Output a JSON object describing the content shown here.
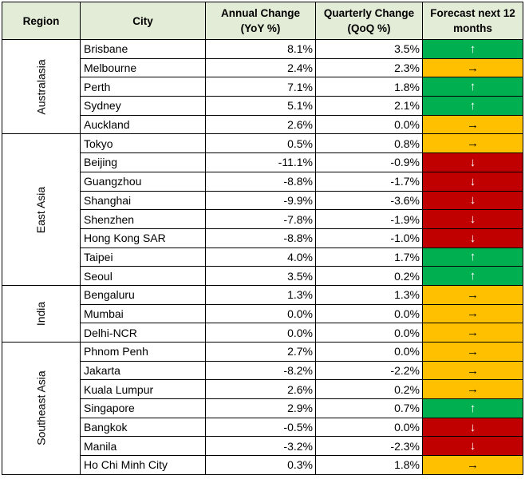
{
  "header": {
    "region": "Region",
    "city": "City",
    "annual_line1": "Annual Change",
    "annual_line2": "(YoY %)",
    "quarterly_line1": "Quarterly Change",
    "quarterly_line2": "(QoQ %)",
    "forecast_line1": "Forecast next 12",
    "forecast_line2": "months"
  },
  "forecast_colors": {
    "up": "#00b050",
    "flat": "#ffc000",
    "down": "#c00000"
  },
  "groups": [
    {
      "region": "Australasia",
      "rows": [
        {
          "city": "Brisbane",
          "annual": "8.1%",
          "quarterly": "3.5%",
          "forecast": "up",
          "arrow": "↑"
        },
        {
          "city": "Melbourne",
          "annual": "2.4%",
          "quarterly": "2.3%",
          "forecast": "flat",
          "arrow": "→"
        },
        {
          "city": "Perth",
          "annual": "7.1%",
          "quarterly": "1.8%",
          "forecast": "up",
          "arrow": "↑"
        },
        {
          "city": "Sydney",
          "annual": "5.1%",
          "quarterly": "2.1%",
          "forecast": "up",
          "arrow": "↑"
        },
        {
          "city": "Auckland",
          "annual": "2.6%",
          "quarterly": "0.0%",
          "forecast": "flat",
          "arrow": "→"
        }
      ]
    },
    {
      "region": "East Asia",
      "rows": [
        {
          "city": "Tokyo",
          "annual": "0.5%",
          "quarterly": "0.8%",
          "forecast": "flat",
          "arrow": "→"
        },
        {
          "city": "Beijing",
          "annual": "-11.1%",
          "quarterly": "-0.9%",
          "forecast": "down",
          "arrow": "↓"
        },
        {
          "city": "Guangzhou",
          "annual": "-8.8%",
          "quarterly": "-1.7%",
          "forecast": "down",
          "arrow": "↓"
        },
        {
          "city": "Shanghai",
          "annual": "-9.9%",
          "quarterly": "-3.6%",
          "forecast": "down",
          "arrow": "↓"
        },
        {
          "city": "Shenzhen",
          "annual": "-7.8%",
          "quarterly": "-1.9%",
          "forecast": "down",
          "arrow": "↓"
        },
        {
          "city": "Hong Kong SAR",
          "annual": "-8.8%",
          "quarterly": "-1.0%",
          "forecast": "down",
          "arrow": "↓"
        },
        {
          "city": "Taipei",
          "annual": "4.0%",
          "quarterly": "1.7%",
          "forecast": "up",
          "arrow": "↑"
        },
        {
          "city": "Seoul",
          "annual": "3.5%",
          "quarterly": "0.2%",
          "forecast": "up",
          "arrow": "↑"
        }
      ]
    },
    {
      "region": "India",
      "rows": [
        {
          "city": "Bengaluru",
          "annual": "1.3%",
          "quarterly": "1.3%",
          "forecast": "flat",
          "arrow": "→"
        },
        {
          "city": "Mumbai",
          "annual": "0.0%",
          "quarterly": "0.0%",
          "forecast": "flat",
          "arrow": "→"
        },
        {
          "city": "Delhi-NCR",
          "annual": "0.0%",
          "quarterly": "0.0%",
          "forecast": "flat",
          "arrow": "→"
        }
      ]
    },
    {
      "region": "Southeast Asia",
      "rows": [
        {
          "city": "Phnom Penh",
          "annual": "2.7%",
          "quarterly": "0.0%",
          "forecast": "flat",
          "arrow": "→"
        },
        {
          "city": "Jakarta",
          "annual": "-8.2%",
          "quarterly": "-2.2%",
          "forecast": "flat",
          "arrow": "→"
        },
        {
          "city": "Kuala Lumpur",
          "annual": "2.6%",
          "quarterly": "0.2%",
          "forecast": "flat",
          "arrow": "→"
        },
        {
          "city": "Singapore",
          "annual": "2.9%",
          "quarterly": "0.7%",
          "forecast": "up",
          "arrow": "↑"
        },
        {
          "city": "Bangkok",
          "annual": "-0.5%",
          "quarterly": "0.0%",
          "forecast": "down",
          "arrow": "↓"
        },
        {
          "city": "Manila",
          "annual": "-3.2%",
          "quarterly": "-2.3%",
          "forecast": "down",
          "arrow": "↓"
        },
        {
          "city": "Ho Chi Minh City",
          "annual": "0.3%",
          "quarterly": "1.8%",
          "forecast": "flat",
          "arrow": "→"
        }
      ]
    }
  ]
}
